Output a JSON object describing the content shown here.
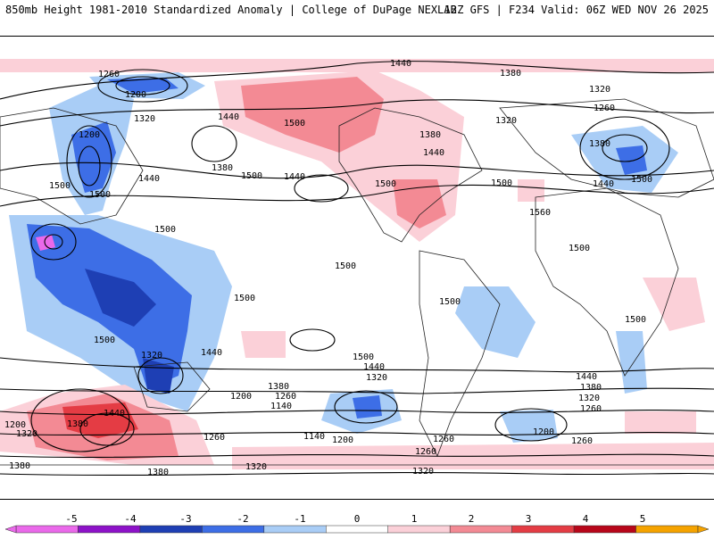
{
  "header": {
    "left": "850mb Height 1981-2010 Standardized Anomaly | College of DuPage NEXLAB",
    "right": "12Z GFS | F234 Valid: 06Z WED NOV 26 2025"
  },
  "contour_labels": [
    "1260",
    "1200",
    "1320",
    "1440",
    "1380",
    "1500",
    "1560",
    "1140"
  ],
  "colorbar": {
    "ticks": [
      "-5",
      "-4",
      "-3",
      "-2",
      "-1",
      "0",
      "1",
      "2",
      "3",
      "4",
      "5"
    ],
    "colors": [
      "#ea69ea",
      "#8d12c8",
      "#1e3fb4",
      "#3d6ee6",
      "#a9cdf6",
      "#ffffff",
      "#fbd0d8",
      "#f38a94",
      "#e43c44",
      "#b8061a",
      "#f5a300"
    ]
  },
  "palette": {
    "neg_light": "#a9cdf6",
    "neg_mid": "#3d6ee6",
    "neg_dark": "#1e3fb4",
    "neg_extreme": "#ea69ea",
    "pos_light": "#fbd0d8",
    "pos_mid": "#f38a94",
    "pos_dark": "#e43c44"
  }
}
